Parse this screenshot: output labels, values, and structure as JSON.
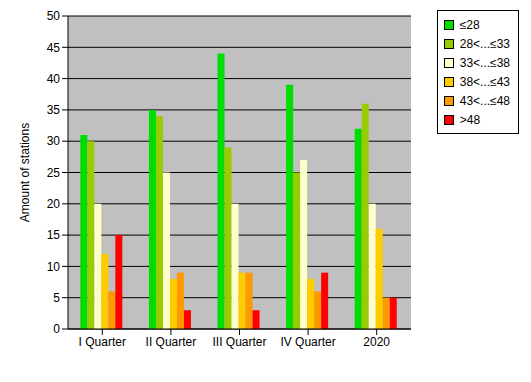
{
  "chart_data": {
    "type": "bar",
    "y_label": "Amount of stations",
    "categories": [
      "I Quarter",
      "II Quarter",
      "III Quarter",
      "IV Quarter",
      "2020"
    ],
    "series": [
      {
        "name": "≤28",
        "color": "#00dd00",
        "values": [
          31,
          35,
          44,
          39,
          32
        ]
      },
      {
        "name": "28<...≤33",
        "color": "#99cc00",
        "values": [
          30,
          34,
          29,
          25,
          36
        ]
      },
      {
        "name": "33<...≤38",
        "color": "#ffffcc",
        "values": [
          20,
          25,
          20,
          27,
          20
        ]
      },
      {
        "name": "38<...≤43",
        "color": "#ffcc00",
        "values": [
          12,
          8,
          9,
          8,
          16
        ]
      },
      {
        "name": "43<...≤48",
        "color": "#ff9900",
        "values": [
          6,
          9,
          9,
          6,
          5
        ]
      },
      {
        "name": ">48",
        "color": "#ff0000",
        "values": [
          15,
          3,
          3,
          9,
          5
        ]
      }
    ],
    "ylim": [
      0,
      50
    ],
    "yticks": [
      0,
      5,
      10,
      15,
      20,
      25,
      30,
      35,
      40,
      45,
      50
    ],
    "grid": true,
    "legend": "upper right"
  }
}
